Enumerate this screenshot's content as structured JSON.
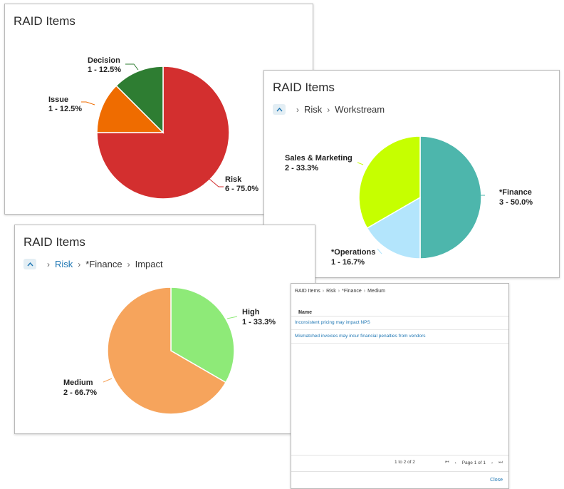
{
  "title": "RAID Items",
  "card1": {
    "title": "RAID Items",
    "chart_data": {
      "type": "pie",
      "title": "",
      "categories": [
        "Risk",
        "Issue",
        "Decision"
      ],
      "values": [
        6,
        1,
        1
      ],
      "colors": [
        "#d32f2f",
        "#ef6c00",
        "#2e7d32"
      ]
    },
    "labels": {
      "decision_name": "Decision",
      "decision_value": "1 - 12.5%",
      "issue_name": "Issue",
      "issue_value": "1 - 12.5%",
      "risk_name": "Risk",
      "risk_value": "6 - 75.0%"
    }
  },
  "card2": {
    "title": "RAID Items",
    "breadcrumb": [
      "Risk",
      "Workstream"
    ],
    "chart_data": {
      "type": "pie",
      "categories": [
        "*Finance",
        "*Operations",
        "Sales & Marketing"
      ],
      "values": [
        3,
        1,
        2
      ],
      "colors": [
        "#4db6ac",
        "#b3e5fc",
        "#c6ff00"
      ]
    },
    "labels": {
      "sales_name": "Sales & Marketing",
      "sales_value": "2 - 33.3%",
      "finance_name": "*Finance",
      "finance_value": "3 - 50.0%",
      "operations_name": "*Operations",
      "operations_value": "1 - 16.7%"
    }
  },
  "card3": {
    "title": "RAID Items",
    "breadcrumb": [
      "Risk",
      "*Finance",
      "Impact"
    ],
    "chart_data": {
      "type": "pie",
      "categories": [
        "High",
        "Medium"
      ],
      "values": [
        1,
        2
      ],
      "colors": [
        "#8eea78",
        "#f6a45c"
      ]
    },
    "labels": {
      "high_name": "High",
      "high_value": "1 - 33.3%",
      "medium_name": "Medium",
      "medium_value": "2 - 66.7%"
    }
  },
  "dialog": {
    "breadcrumb": [
      "RAID Items",
      "Risk",
      "*Finance",
      "Medium"
    ],
    "column_header": "Name",
    "sort_icon": "↑",
    "rows": [
      "Inconsistent pricing may impact NPS",
      "Mismatched invoices may incur financial penalties from vendors"
    ],
    "range": "1 to 2 of 2",
    "page": "Page 1 of 1",
    "close_label": "Close",
    "icons": {
      "first": "⏮",
      "prev": "‹",
      "next": "›",
      "last": "⏭"
    }
  }
}
